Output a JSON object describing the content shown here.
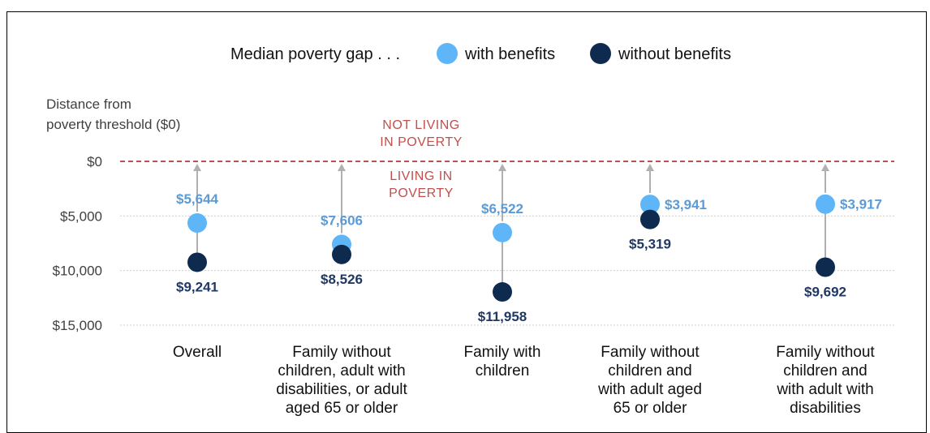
{
  "legend": {
    "title": "Median poverty gap . . .",
    "items": [
      {
        "label": "with benefits",
        "color": "#5eb5f8"
      },
      {
        "label": "without benefits",
        "color": "#0e2a4f"
      }
    ]
  },
  "axis": {
    "title_lines": [
      "Distance from",
      "poverty threshold ($0)"
    ]
  },
  "zones": {
    "above": [
      "NOT LIVING",
      "IN POVERTY"
    ],
    "below": [
      "LIVING IN",
      "POVERTY"
    ]
  },
  "colors": {
    "with_benefits": "#5eb5f8",
    "without_benefits": "#0e2a4f",
    "with_label": "#5b9bd5",
    "without_label": "#1f3864",
    "threshold_line": "#c0504d",
    "connector": "#b0b0b0"
  },
  "chart_data": {
    "type": "scatter",
    "title": "",
    "ylabel": "Distance from poverty threshold ($0)",
    "ylim": [
      0,
      15000
    ],
    "yticks": [
      0,
      5000,
      10000,
      15000
    ],
    "ytick_labels": [
      "$0",
      "$5,000",
      "$10,000",
      "$15,000"
    ],
    "grid": true,
    "legend_position": "top",
    "threshold": 0,
    "categories": [
      {
        "lines": [
          "Overall"
        ]
      },
      {
        "lines": [
          "Family without",
          "children, adult with",
          "disabilities, or adult",
          "aged 65 or older"
        ]
      },
      {
        "lines": [
          "Family with",
          "children"
        ]
      },
      {
        "lines": [
          "Family without",
          "children and",
          "with adult aged",
          "65 or older"
        ]
      },
      {
        "lines": [
          "Family without",
          "children and",
          "with adult with",
          "disabilities"
        ]
      }
    ],
    "series": [
      {
        "name": "with benefits",
        "values": [
          5644,
          7606,
          6522,
          3941,
          3917
        ],
        "labels": [
          "$5,644",
          "$7,606",
          "$6,522",
          "$3,941",
          "$3,917"
        ]
      },
      {
        "name": "without benefits",
        "values": [
          9241,
          8526,
          11958,
          5319,
          9692
        ],
        "labels": [
          "$9,241",
          "$8,526",
          "$11,958",
          "$5,319",
          "$9,692"
        ]
      }
    ]
  }
}
